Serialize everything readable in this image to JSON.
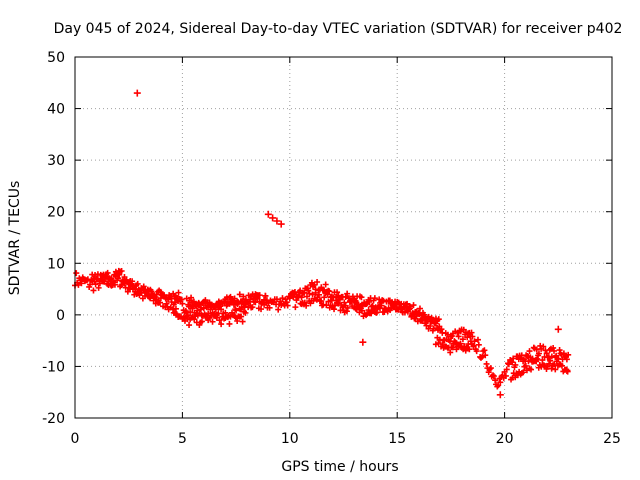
{
  "chart_data": {
    "type": "scatter",
    "title": "Day 045 of 2024, Sidereal Day-to-day VTEC variation (SDTVAR) for receiver p402",
    "xlabel": "GPS time / hours",
    "ylabel": "SDTVAR / TECUs",
    "xlim": [
      0,
      25
    ],
    "ylim": [
      -20,
      50
    ],
    "xticks": [
      0,
      5,
      10,
      15,
      20,
      25
    ],
    "yticks": [
      -20,
      -10,
      0,
      10,
      20,
      30,
      40,
      50
    ],
    "grid": true,
    "marker_color": "#ff0000",
    "series": [
      {
        "name": "SDTVAR",
        "trace": [
          [
            0.0,
            6.8
          ],
          [
            0.3,
            6.5
          ],
          [
            0.6,
            6.2
          ],
          [
            1.0,
            6.0
          ],
          [
            1.5,
            6.3
          ],
          [
            2.0,
            6.6
          ],
          [
            2.3,
            6.2
          ],
          [
            2.6,
            5.2
          ],
          [
            3.0,
            4.2
          ],
          [
            3.5,
            3.2
          ],
          [
            4.0,
            2.6
          ],
          [
            4.5,
            2.2
          ],
          [
            5.0,
            1.6
          ],
          [
            5.5,
            1.2
          ],
          [
            6.0,
            1.0
          ],
          [
            6.5,
            0.9
          ],
          [
            7.0,
            1.2
          ],
          [
            7.5,
            1.4
          ],
          [
            8.0,
            2.0
          ],
          [
            8.5,
            2.2
          ],
          [
            9.0,
            2.4
          ],
          [
            9.5,
            2.5
          ],
          [
            10.0,
            2.8
          ],
          [
            10.5,
            3.2
          ],
          [
            11.0,
            3.4
          ],
          [
            11.5,
            2.8
          ],
          [
            12.0,
            2.4
          ],
          [
            12.5,
            2.0
          ],
          [
            13.0,
            1.8
          ],
          [
            13.5,
            1.7
          ],
          [
            14.0,
            1.8
          ],
          [
            14.5,
            1.9
          ],
          [
            15.0,
            1.7
          ],
          [
            15.5,
            1.0
          ],
          [
            16.0,
            0.0
          ],
          [
            16.5,
            -1.5
          ],
          [
            17.0,
            -3.5
          ],
          [
            17.5,
            -4.5
          ],
          [
            18.0,
            -3.5
          ],
          [
            18.5,
            -5.0
          ],
          [
            19.0,
            -8.0
          ],
          [
            19.3,
            -10.5
          ],
          [
            19.6,
            -12.5
          ],
          [
            19.8,
            -13.0
          ],
          [
            20.0,
            -11.5
          ],
          [
            20.3,
            -9.5
          ],
          [
            20.7,
            -8.0
          ],
          [
            21.0,
            -7.5
          ],
          [
            21.5,
            -7.3
          ],
          [
            22.0,
            -7.2
          ],
          [
            22.5,
            -8.0
          ],
          [
            23.0,
            -9.5
          ]
        ],
        "branches": [
          [
            [
              0.8,
              7.5
            ],
            [
              1.2,
              7.2
            ],
            [
              1.7,
              7.6
            ],
            [
              2.1,
              7.8
            ],
            [
              2.5,
              6.0
            ],
            [
              3.2,
              4.8
            ],
            [
              3.8,
              4.2
            ],
            [
              4.5,
              3.8
            ],
            [
              5.0,
              3.3
            ]
          ],
          [
            [
              4.6,
              1.0
            ],
            [
              5.0,
              -1.2
            ],
            [
              5.6,
              -1.0
            ],
            [
              6.2,
              -0.6
            ],
            [
              7.0,
              -0.8
            ],
            [
              7.6,
              -0.5
            ],
            [
              8.0,
              0.3
            ]
          ],
          [
            [
              5.2,
              2.4
            ],
            [
              6.0,
              2.1
            ],
            [
              7.0,
              2.4
            ],
            [
              7.6,
              3.2
            ],
            [
              8.2,
              3.4
            ],
            [
              9.0,
              2.8
            ]
          ],
          [
            [
              10.0,
              3.6
            ],
            [
              10.6,
              4.5
            ],
            [
              11.2,
              5.5
            ],
            [
              11.6,
              4.8
            ],
            [
              12.2,
              3.6
            ],
            [
              13.0,
              3.2
            ],
            [
              13.4,
              2.8
            ]
          ],
          [
            [
              13.0,
              0.8
            ],
            [
              13.6,
              0.9
            ],
            [
              14.2,
              1.0
            ],
            [
              15.0,
              1.3
            ],
            [
              15.6,
              0.6
            ],
            [
              16.2,
              -0.6
            ],
            [
              17.0,
              -2.0
            ]
          ],
          [
            [
              16.8,
              -5.0
            ],
            [
              17.4,
              -6.2
            ],
            [
              18.0,
              -5.8
            ],
            [
              18.6,
              -6.4
            ]
          ],
          [
            [
              20.3,
              -12.0
            ],
            [
              20.8,
              -10.5
            ],
            [
              21.4,
              -9.2
            ],
            [
              22.0,
              -9.5
            ],
            [
              22.6,
              -10.3
            ],
            [
              23.0,
              -10.6
            ]
          ]
        ],
        "outliers": [
          [
            2.9,
            43.0
          ],
          [
            9.0,
            19.5
          ],
          [
            9.2,
            18.8
          ],
          [
            9.4,
            18.2
          ],
          [
            9.6,
            17.6
          ],
          [
            13.4,
            -5.3
          ],
          [
            19.8,
            -15.5
          ],
          [
            22.5,
            -2.8
          ],
          [
            22.9,
            -10.8
          ]
        ]
      }
    ]
  }
}
